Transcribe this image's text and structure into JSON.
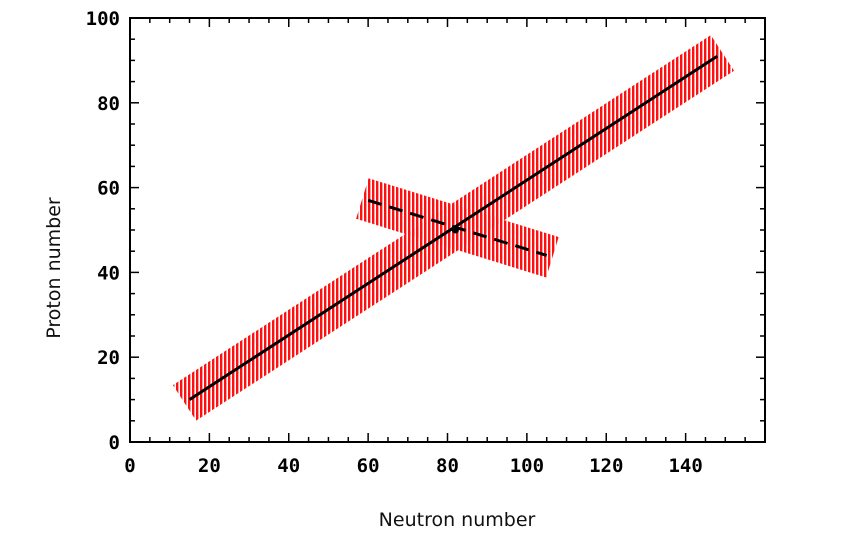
{
  "chart_data": {
    "type": "line",
    "title": "",
    "xlabel": "Neutron number",
    "ylabel": "Proton number",
    "xlim": [
      0,
      160
    ],
    "ylim": [
      0,
      100
    ],
    "x_ticks": [
      0,
      20,
      40,
      60,
      80,
      100,
      120,
      140
    ],
    "y_ticks": [
      0,
      20,
      40,
      60,
      80,
      100
    ],
    "grid": false,
    "legend": "none",
    "series": [
      {
        "style": "solid",
        "line_color": "#000000",
        "band_color": "#ff0000",
        "band_half_width": 5,
        "points": [
          [
            15,
            10
          ],
          [
            148,
            91
          ]
        ]
      },
      {
        "style": "dashed",
        "line_color": "#000000",
        "band_color": "#ff0000",
        "band_half_width": 5,
        "points": [
          [
            60,
            57
          ],
          [
            105,
            44
          ]
        ]
      }
    ],
    "intersection": [
      82,
      50
    ]
  }
}
